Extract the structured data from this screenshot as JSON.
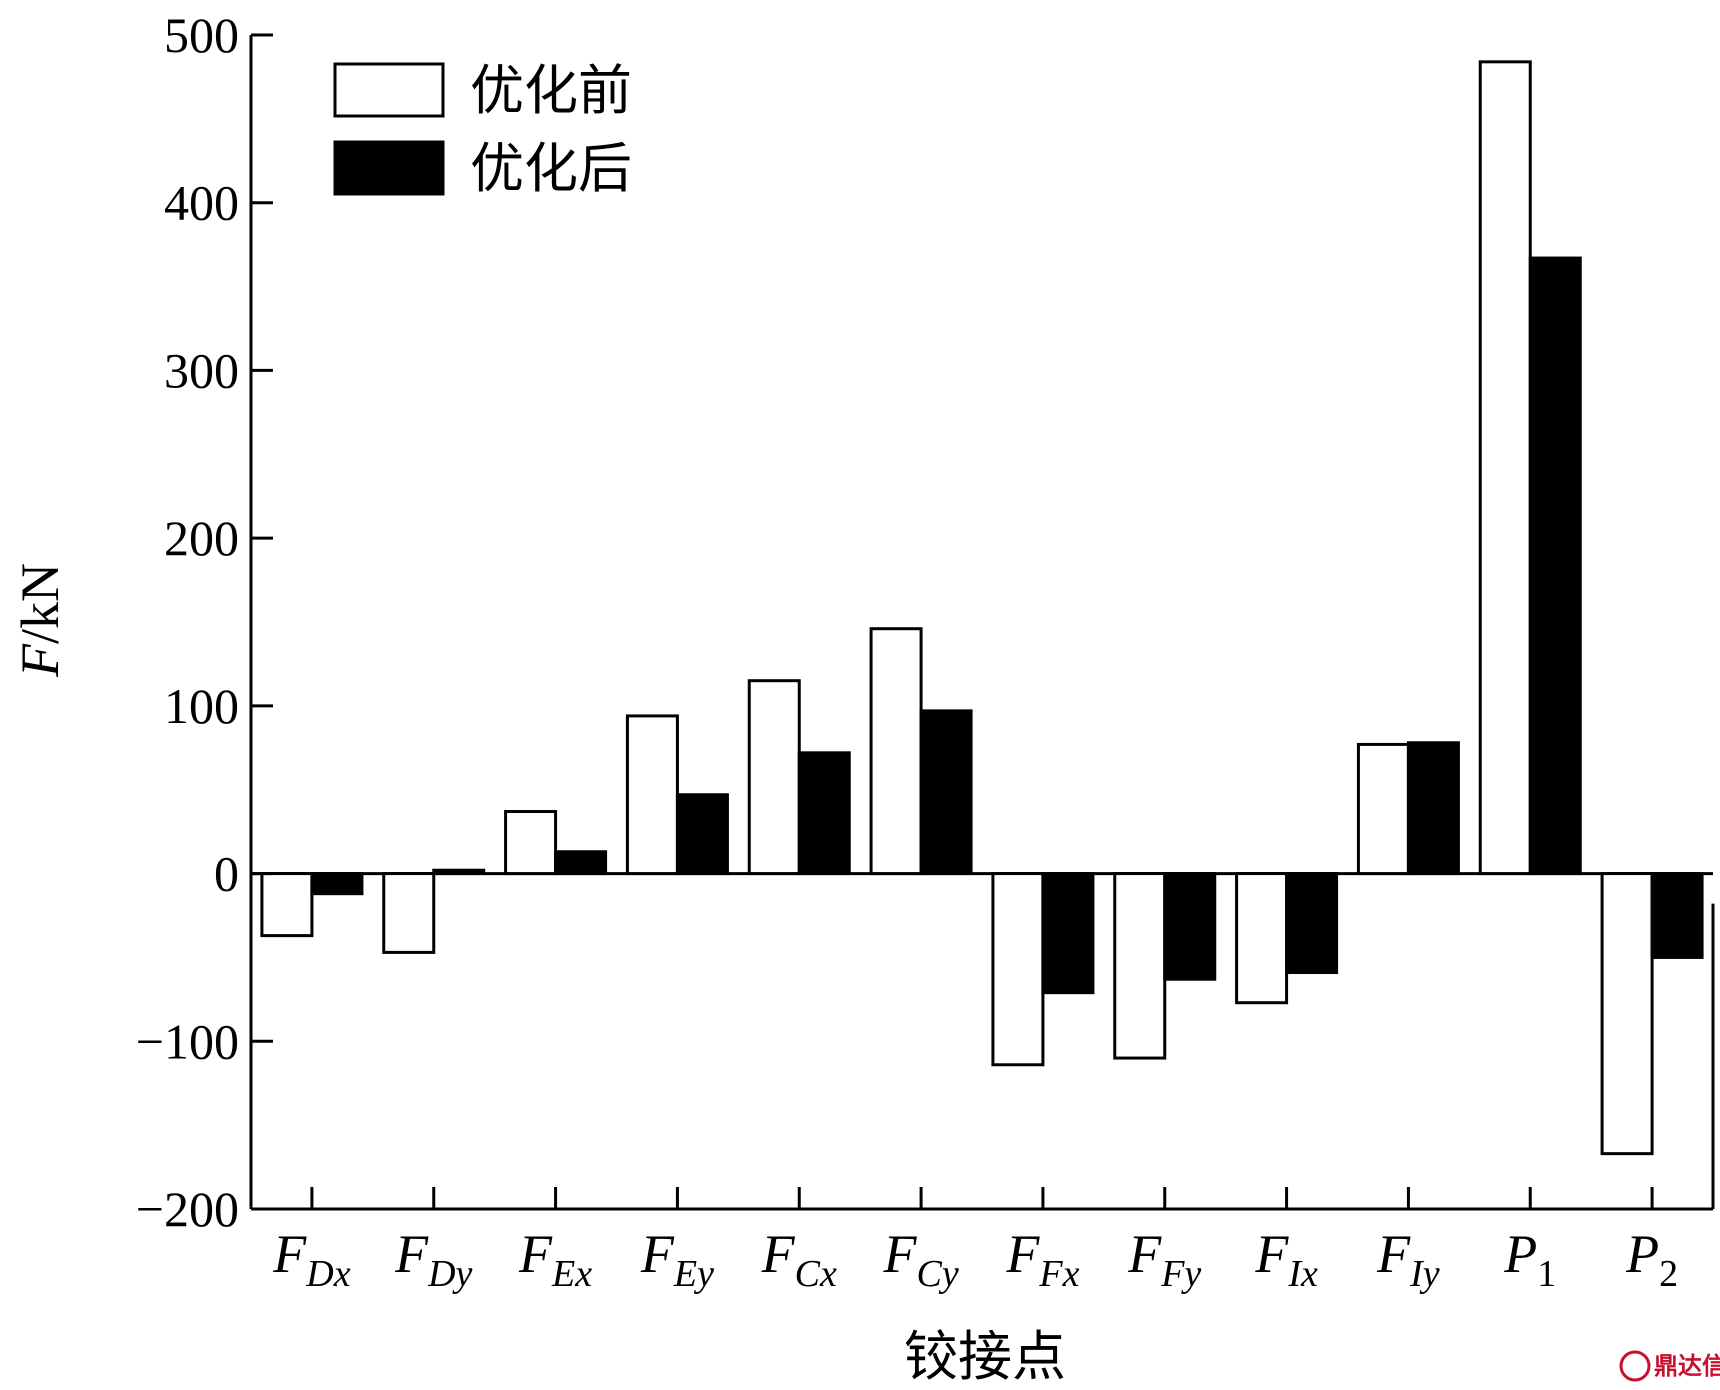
{
  "chart_data": {
    "type": "bar",
    "categories": [
      {
        "main": "F",
        "sub": "Dx",
        "sub_italic": true
      },
      {
        "main": "F",
        "sub": "Dy",
        "sub_italic": true
      },
      {
        "main": "F",
        "sub": "Ex",
        "sub_italic": true
      },
      {
        "main": "F",
        "sub": "Ey",
        "sub_italic": true
      },
      {
        "main": "F",
        "sub": "Cx",
        "sub_italic": true
      },
      {
        "main": "F",
        "sub": "Cy",
        "sub_italic": true
      },
      {
        "main": "F",
        "sub": "Fx",
        "sub_italic": true
      },
      {
        "main": "F",
        "sub": "Fy",
        "sub_italic": true
      },
      {
        "main": "F",
        "sub": "Ix",
        "sub_italic": true
      },
      {
        "main": "F",
        "sub": "Iy",
        "sub_italic": true
      },
      {
        "main": "P",
        "sub": "1",
        "sub_italic": false
      },
      {
        "main": "P",
        "sub": "2",
        "sub_italic": false
      }
    ],
    "series": [
      {
        "name": "优化前",
        "color": "#ffffff",
        "values": [
          -37,
          -47,
          37,
          94,
          115,
          146,
          -114,
          -110,
          -77,
          77,
          484,
          -167
        ]
      },
      {
        "name": "优化后",
        "color": "#000000",
        "values": [
          -12,
          2,
          13,
          47,
          72,
          97,
          -71,
          -63,
          -59,
          78,
          367,
          -50
        ]
      }
    ],
    "ylabel": {
      "italic": "F",
      "rest": "/kN"
    },
    "xlabel": "铰接点",
    "ylim": [
      -200,
      500
    ],
    "yticks": [
      -200,
      -100,
      0,
      100,
      200,
      300,
      400,
      500
    ],
    "ytick_labels": [
      "−200",
      "−100",
      "0",
      "100",
      "200",
      "300",
      "400",
      "500"
    ],
    "legend_position": "top-left",
    "grid": false
  },
  "watermark": {
    "text": "鼎达信",
    "icon": "logo-circle-icon",
    "color": "#c8102e"
  }
}
